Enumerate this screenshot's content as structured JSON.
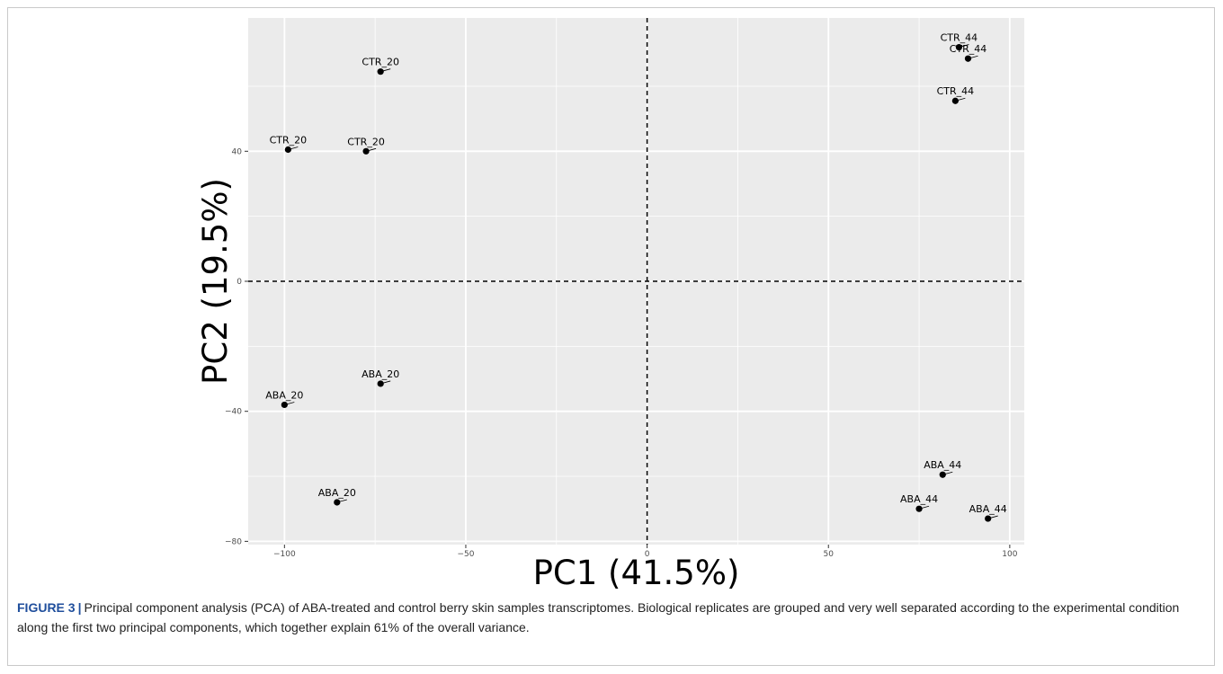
{
  "chart_data": {
    "type": "scatter",
    "xlabel": "PC1 (41.5%)",
    "ylabel": "PC2 (19.5%)",
    "xlim": [
      -110,
      104
    ],
    "ylim": [
      -81,
      81
    ],
    "x_ticks": [
      -100,
      -50,
      0,
      50,
      100
    ],
    "y_ticks": [
      -80,
      -40,
      0,
      40
    ],
    "grid": true,
    "reference_lines": {
      "x": 0,
      "y": 0,
      "style": "dashed"
    },
    "points": [
      {
        "label": "CTR_20",
        "x": -73.5,
        "y": 64.5
      },
      {
        "label": "CTR_20",
        "x": -99,
        "y": 40.5
      },
      {
        "label": "CTR_20",
        "x": -77.5,
        "y": 40
      },
      {
        "label": "CTR_44",
        "x": 86,
        "y": 72
      },
      {
        "label": "CTR_44",
        "x": 88.5,
        "y": 68.5
      },
      {
        "label": "CTR_44",
        "x": 85,
        "y": 55.5
      },
      {
        "label": "ABA_20",
        "x": -73.5,
        "y": -31.5
      },
      {
        "label": "ABA_20",
        "x": -100,
        "y": -38
      },
      {
        "label": "ABA_20",
        "x": -85.5,
        "y": -68
      },
      {
        "label": "ABA_44",
        "x": 81.5,
        "y": -59.5
      },
      {
        "label": "ABA_44",
        "x": 75,
        "y": -70
      },
      {
        "label": "ABA_44",
        "x": 94,
        "y": -73
      }
    ]
  },
  "caption": {
    "label": "FIGURE 3",
    "separator": "|",
    "text": "Principal component analysis (PCA) of ABA-treated and control berry skin samples transcriptomes. Biological replicates are grouped and very well separated according to the experimental condition along the first two principal components, which together explain 61% of the overall variance."
  },
  "colors": {
    "panel_bg": "#ebebeb",
    "grid": "#ffffff",
    "point": "#000000",
    "caption_label": "#1f4e9c"
  }
}
